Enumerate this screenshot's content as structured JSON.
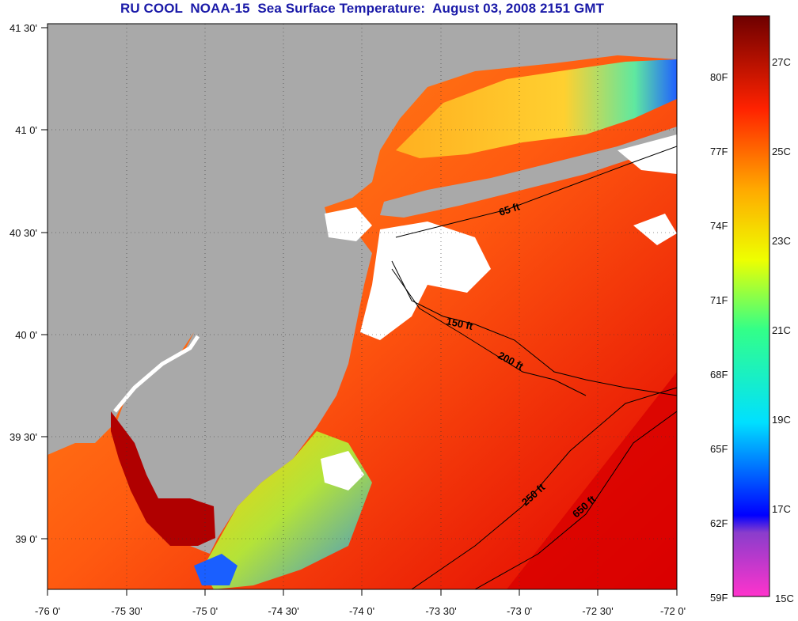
{
  "title": "RU COOL  NOAA-15  Sea Surface Temperature:  August 03, 2008 2151 GMT",
  "x_ticks": [
    "-76 0'",
    "-75 30'",
    "-75 0'",
    "-74 30'",
    "-74 0'",
    "-73 30'",
    "-73 0'",
    "-72 30'",
    "-72 0'"
  ],
  "y_ticks": [
    "41 30'",
    "41 0'",
    "40 30'",
    "40 0'",
    "39 30'",
    "39 0'"
  ],
  "contour_labels": [
    "65 ft",
    "150 ft",
    "200 ft",
    "250 ft",
    "650 ft"
  ],
  "colorbar": {
    "fahrenheit": [
      "80F",
      "77F",
      "74F",
      "71F",
      "68F",
      "65F",
      "62F",
      "59F"
    ],
    "celsius": [
      "27C",
      "25C",
      "23C",
      "21C",
      "19C",
      "17C",
      "15C"
    ]
  },
  "colors": {
    "land": "#a9a9a9",
    "cloud": "#ffffff",
    "title": "#1a1aa8"
  }
}
